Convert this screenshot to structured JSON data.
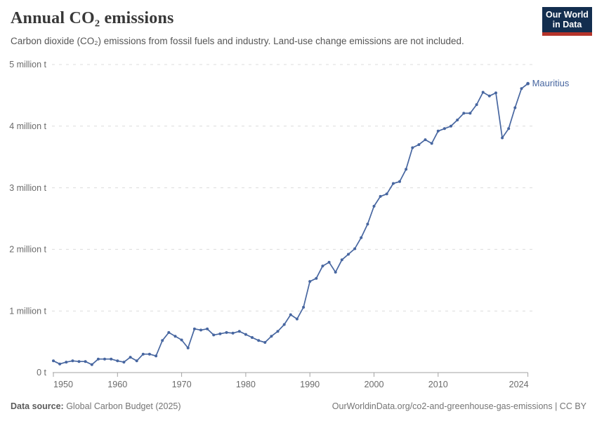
{
  "header": {
    "title": "Annual CO₂ emissions",
    "subtitle": "Carbon dioxide (CO₂) emissions from fossil fuels and industry. Land-use change emissions are not included.",
    "logo_line1": "Our World",
    "logo_line2": "in Data"
  },
  "footer": {
    "source_label": "Data source:",
    "source_value": " Global Carbon Budget (2025)",
    "link": "OurWorldinData.org/co2-and-greenhouse-gas-emissions | CC BY"
  },
  "chart_data": {
    "type": "line",
    "title": "Annual CO₂ emissions",
    "entity": "Mauritius",
    "unit": "tonnes",
    "xlabel": "",
    "ylabel": "",
    "xlim": [
      1950,
      2024
    ],
    "ylim": [
      0,
      5000000
    ],
    "grid": true,
    "legend_position": "end-of-line",
    "colors": {
      "line": "#4766a0",
      "grid": "#dcdcdc",
      "axis": "#a3a3a3",
      "tick_text": "#6b6b6b",
      "logo_bg": "#132e4f",
      "logo_bar": "#b5342a"
    },
    "x_ticks": [
      1950,
      1960,
      1970,
      1980,
      1990,
      2000,
      2010,
      2024
    ],
    "y_ticks": [
      {
        "value": 0.0,
        "label": "0 t"
      },
      {
        "value": 1.0,
        "label": "1 million t"
      },
      {
        "value": 2.0,
        "label": "2 million t"
      },
      {
        "value": 3.0,
        "label": "3 million t"
      },
      {
        "value": 4.0,
        "label": "4 million t"
      },
      {
        "value": 5.0,
        "label": "5 million t"
      }
    ],
    "x": [
      1950,
      1951,
      1952,
      1953,
      1954,
      1955,
      1956,
      1957,
      1958,
      1959,
      1960,
      1961,
      1962,
      1963,
      1964,
      1965,
      1966,
      1967,
      1968,
      1969,
      1970,
      1971,
      1972,
      1973,
      1974,
      1975,
      1976,
      1977,
      1978,
      1979,
      1980,
      1981,
      1982,
      1983,
      1984,
      1985,
      1986,
      1987,
      1988,
      1989,
      1990,
      1991,
      1992,
      1993,
      1994,
      1995,
      1996,
      1997,
      1998,
      1999,
      2000,
      2001,
      2002,
      2003,
      2004,
      2005,
      2006,
      2007,
      2008,
      2009,
      2010,
      2011,
      2012,
      2013,
      2014,
      2015,
      2016,
      2017,
      2018,
      2019,
      2020,
      2021,
      2022,
      2023,
      2024
    ],
    "values_million_t": [
      0.19,
      0.14,
      0.17,
      0.19,
      0.18,
      0.18,
      0.13,
      0.22,
      0.22,
      0.22,
      0.19,
      0.17,
      0.25,
      0.19,
      0.3,
      0.3,
      0.27,
      0.52,
      0.65,
      0.59,
      0.53,
      0.4,
      0.71,
      0.69,
      0.71,
      0.61,
      0.63,
      0.65,
      0.64,
      0.67,
      0.62,
      0.57,
      0.52,
      0.49,
      0.59,
      0.67,
      0.78,
      0.94,
      0.87,
      1.06,
      1.48,
      1.53,
      1.73,
      1.79,
      1.63,
      1.83,
      1.92,
      2.01,
      2.19,
      2.41,
      2.7,
      2.86,
      2.9,
      3.07,
      3.1,
      3.3,
      3.65,
      3.7,
      3.78,
      3.72,
      3.92,
      3.96,
      4.0,
      4.1,
      4.21,
      4.21,
      4.35,
      4.55,
      4.49,
      4.54,
      3.81,
      3.96,
      4.3,
      4.61,
      4.69
    ]
  }
}
